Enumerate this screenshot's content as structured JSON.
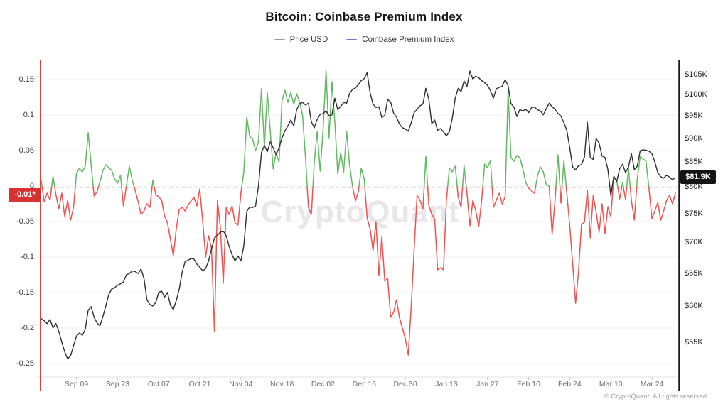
{
  "header": {
    "title": "Bitcoin: Coinbase Premium Index"
  },
  "legend": [
    {
      "label": "Price USD",
      "color": "#9e9e9e"
    },
    {
      "label": "Coinbase Premium Index",
      "color": "#7d6fe0"
    }
  ],
  "watermark": "CryptoQuant",
  "footer": "© CryptoQuant. All rights reserved",
  "badges": {
    "left": {
      "text": "-0.01*",
      "bg": "#d63230"
    },
    "right": {
      "text": "$81.9K",
      "bg": "#141414"
    }
  },
  "colors": {
    "price_line": "#2e2e2e",
    "premium_positive": "#63b863",
    "premium_negative": "#ef5350",
    "left_axis_line": "#e0413d",
    "right_axis_line": "#1a1a1a",
    "grid": "#f2f2f2",
    "axis_bottom": "#e3e3e3",
    "tick_mark": "#c9c9c9",
    "dashed_line": "#c4c4c4"
  },
  "chart_data": {
    "type": "line",
    "title": "Bitcoin: Coinbase Premium Index",
    "grid": true,
    "legend_position": "top-center",
    "x_tick_labels": [
      "Sep 09",
      "Sep 23",
      "Oct 07",
      "Oct 21",
      "Nov 04",
      "Nov 18",
      "Dec 02",
      "Dec 16",
      "Dec 30",
      "Jan 13",
      "Jan 27",
      "Feb 10",
      "Feb 24",
      "Mar 10",
      "Mar 24"
    ],
    "x_tick_day_index": [
      12,
      26,
      40,
      54,
      68,
      82,
      96,
      110,
      124,
      138,
      152,
      166,
      180,
      194,
      208
    ],
    "left_axis": {
      "label": "Coinbase Premium Index",
      "scale": "linear",
      "ticks": [
        "0.15",
        "0.1",
        "0.05",
        "0",
        "-0.05",
        "-0.1",
        "-0.15",
        "-0.2",
        "-0.25"
      ],
      "tick_values": [
        0.15,
        0.1,
        0.05,
        0,
        -0.05,
        -0.1,
        -0.15,
        -0.2,
        -0.25
      ],
      "range": [
        -0.288,
        0.177
      ],
      "latest_value": -0.01,
      "latest_label": "-0.01*"
    },
    "right_axis": {
      "label": "Price USD",
      "scale": "log",
      "ticks": [
        "$105K",
        "$100K",
        "$95K",
        "$90K",
        "$85K",
        "$80K",
        "$75K",
        "$70K",
        "$65K",
        "$60K",
        "$55K"
      ],
      "tick_values": [
        105,
        100,
        95,
        90,
        85,
        80,
        75,
        70,
        65,
        60,
        55
      ],
      "latest_value": 81.9,
      "latest_label": "$81.9K"
    },
    "zero_line_dashed": true,
    "series": [
      {
        "name": "Price USD",
        "axis": "right",
        "color": "#2e2e2e",
        "unit": "thousand USD",
        "values": [
          58.3,
          58.0,
          57.6,
          58.2,
          57.0,
          57.6,
          56.5,
          55.1,
          53.8,
          52.9,
          53.3,
          54.6,
          55.9,
          56.3,
          56.0,
          56.8,
          59.5,
          60.0,
          58.5,
          57.7,
          57.3,
          58.6,
          60.1,
          61.8,
          62.6,
          62.8,
          63.2,
          63.4,
          63.7,
          64.8,
          65.0,
          65.4,
          65.3,
          65.0,
          65.7,
          64.2,
          61.0,
          60.3,
          60.1,
          60.6,
          62.1,
          62.3,
          61.4,
          62.1,
          60.2,
          59.6,
          60.9,
          62.6,
          65.2,
          66.9,
          67.1,
          67.4,
          67.3,
          66.5,
          66.0,
          65.4,
          65.8,
          67.0,
          69.0,
          70.8,
          71.3,
          71.8,
          72.0,
          71.2,
          69.4,
          68.0,
          67.0,
          67.8,
          67.0,
          69.5,
          75.5,
          76.3,
          76.2,
          76.5,
          80.3,
          87.0,
          88.5,
          87.2,
          89.3,
          88.0,
          86.6,
          88.0,
          90.1,
          91.7,
          92.8,
          94.1,
          92.8,
          96.5,
          97.9,
          98.2,
          97.6,
          98.0,
          93.7,
          92.4,
          94.3,
          95.4,
          95.6,
          96.2,
          95.1,
          95.3,
          99.2,
          96.5,
          97.3,
          98.2,
          98.0,
          100.3,
          101.3,
          101.7,
          102.5,
          103.5,
          104.0,
          105.5,
          100.5,
          97.8,
          97.0,
          97.2,
          94.7,
          95.2,
          98.9,
          98.3,
          95.7,
          94.8,
          93.2,
          92.4,
          92.1,
          91.6,
          93.5,
          95.8,
          96.6,
          97.4,
          97.8,
          101.6,
          99.0,
          93.3,
          94.1,
          91.8,
          92.2,
          91.5,
          90.6,
          91.5,
          94.5,
          99.2,
          101.6,
          100.8,
          103.4,
          102.0,
          105.9,
          103.9,
          104.6,
          104.2,
          103.5,
          103.0,
          102.3,
          101.0,
          99.2,
          101.5,
          101.8,
          102.1,
          103.7,
          102.2,
          97.9,
          97.1,
          94.9,
          96.5,
          96.2,
          96.6,
          95.8,
          97.0,
          97.1,
          96.5,
          96.2,
          95.3,
          96.7,
          98.0,
          97.2,
          96.6,
          95.6,
          95.0,
          93.5,
          91.8,
          88.0,
          84.0,
          83.5,
          84.3,
          84.5,
          86.0,
          93.6,
          86.0,
          85.6,
          90.0,
          89.0,
          86.3,
          86.0,
          83.5,
          78.4,
          82.2,
          81.1,
          83.7,
          84.6,
          82.9,
          84.0,
          86.8,
          83.5,
          84.2,
          87.4,
          87.6,
          87.5,
          87.3,
          86.8,
          85.0,
          82.9,
          82.1,
          81.8,
          82.4,
          82.0,
          81.5,
          81.9
        ]
      },
      {
        "name": "Coinbase Premium Index",
        "axis": "left",
        "color_positive": "#63b863",
        "color_negative": "#ef5350",
        "values": [
          0.008,
          -0.022,
          -0.01,
          -0.02,
          0.014,
          -0.012,
          -0.032,
          -0.01,
          -0.043,
          -0.02,
          -0.048,
          -0.03,
          0.018,
          0.025,
          0.02,
          0.028,
          0.075,
          0.03,
          -0.014,
          -0.008,
          0.006,
          0.022,
          0.03,
          0.026,
          0.022,
          0.01,
          0.004,
          0.015,
          -0.028,
          0.0,
          0.028,
          0.008,
          -0.006,
          -0.022,
          -0.04,
          -0.035,
          -0.025,
          -0.03,
          0.008,
          -0.012,
          -0.015,
          -0.02,
          -0.042,
          -0.052,
          -0.075,
          -0.098,
          -0.06,
          -0.033,
          -0.03,
          -0.035,
          -0.027,
          -0.021,
          -0.016,
          -0.028,
          -0.004,
          -0.05,
          -0.1,
          -0.07,
          -0.088,
          -0.205,
          -0.02,
          -0.058,
          -0.137,
          -0.03,
          -0.04,
          -0.028,
          -0.052,
          -0.055,
          -0.01,
          0.02,
          0.097,
          0.07,
          0.066,
          0.05,
          0.062,
          0.137,
          0.055,
          0.132,
          0.077,
          0.024,
          0.047,
          0.034,
          0.12,
          0.135,
          0.118,
          0.132,
          0.115,
          0.13,
          0.118,
          0.1,
          0.04,
          -0.03,
          -0.04,
          0.034,
          0.077,
          0.021,
          0.08,
          0.163,
          0.067,
          0.147,
          0.09,
          0.017,
          0.047,
          0.02,
          0.077,
          0.03,
          0.0,
          -0.021,
          -0.008,
          0.025,
          0.01,
          -0.045,
          -0.06,
          -0.091,
          -0.05,
          -0.126,
          -0.071,
          -0.134,
          -0.13,
          -0.185,
          -0.178,
          -0.16,
          -0.185,
          -0.2,
          -0.215,
          -0.238,
          -0.17,
          -0.09,
          -0.013,
          -0.02,
          -0.032,
          0.042,
          -0.027,
          -0.04,
          -0.046,
          -0.118,
          -0.115,
          -0.118,
          -0.02,
          0.025,
          0.02,
          0.028,
          -0.015,
          -0.03,
          0.029,
          -0.01,
          -0.056,
          -0.02,
          -0.035,
          -0.057,
          -0.02,
          0.031,
          0.026,
          0.036,
          -0.03,
          -0.02,
          -0.01,
          -0.025,
          -0.015,
          0.134,
          0.04,
          0.035,
          0.043,
          0.04,
          0.025,
          0.005,
          -0.003,
          -0.007,
          -0.01,
          0.014,
          0.027,
          0.02,
          0.002,
          0.0,
          -0.068,
          -0.02,
          0.044,
          -0.024,
          0.036,
          -0.01,
          -0.056,
          -0.11,
          -0.165,
          -0.12,
          -0.054,
          -0.051,
          -0.006,
          -0.073,
          -0.013,
          -0.037,
          -0.065,
          -0.025,
          -0.067,
          -0.029,
          -0.043,
          0.012,
          0.008,
          -0.018,
          0.005,
          -0.019,
          0.025,
          -0.02,
          -0.048,
          0.01,
          0.042,
          0.038,
          0.035,
          -0.004,
          -0.046,
          -0.035,
          -0.023,
          -0.048,
          -0.035,
          -0.02,
          -0.013,
          -0.025,
          -0.01
        ]
      }
    ]
  }
}
